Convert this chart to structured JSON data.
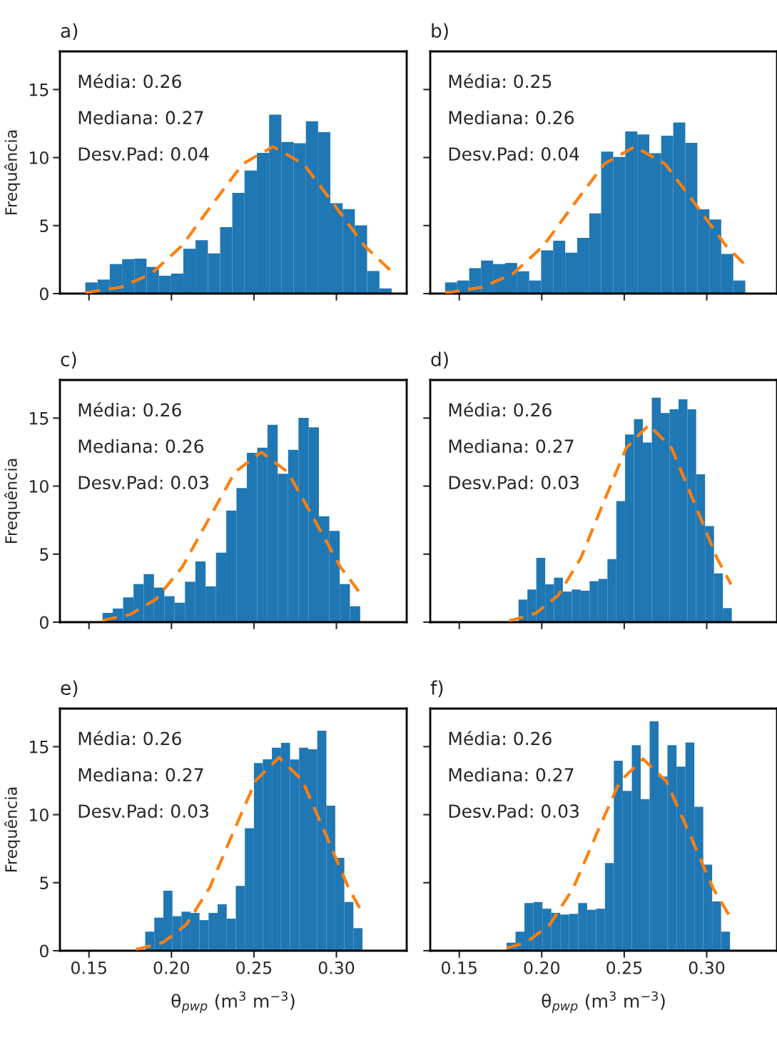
{
  "chart_data": [
    {
      "type": "histogram",
      "title": "a)",
      "ylabel": "Frequência",
      "xlim": [
        0.1324,
        0.3426
      ],
      "ylim": [
        0,
        17.8
      ],
      "xticks": [
        {
          "value": 0.15,
          "label": null
        },
        {
          "value": 0.2,
          "label": null
        },
        {
          "value": 0.25,
          "label": null
        },
        {
          "value": 0.3,
          "label": null
        }
      ],
      "yticks": [
        0,
        5,
        10,
        15
      ],
      "tick_labels": "y",
      "grid": false,
      "legend": false,
      "annotations": [
        "Média: 0.26",
        "Mediana: 0.27",
        "Desv.Pad: 0.04"
      ],
      "series": [
        {
          "type": "histogram",
          "color": "#1f77b4",
          "bins": [
            0.1478,
            0.1552,
            0.1626,
            0.1701,
            0.1775,
            0.1849,
            0.1924,
            0.1998,
            0.2072,
            0.2146,
            0.2221,
            0.2295,
            0.2369,
            0.2443,
            0.2518,
            0.2592,
            0.2666,
            0.2741,
            0.2815,
            0.2889,
            0.2963,
            0.3038,
            0.3112,
            0.3186,
            0.3261,
            0.3335
          ],
          "values": [
            0.82,
            1.03,
            2.17,
            2.53,
            2.57,
            1.96,
            1.31,
            1.47,
            3.3,
            3.92,
            2.95,
            4.88,
            7.41,
            9.04,
            10.35,
            13.15,
            11.14,
            11.05,
            12.67,
            11.87,
            6.64,
            6.21,
            5.02,
            1.66,
            0.38
          ]
        },
        {
          "type": "line",
          "color": "#ff7f0e",
          "line_style": "dashed",
          "x": [
            0.1478,
            0.1509,
            0.1694,
            0.1878,
            0.2063,
            0.2247,
            0.2432,
            0.2616,
            0.2801,
            0.2985,
            0.317,
            0.3335
          ],
          "values": [
            0.09,
            0.12,
            0.47,
            1.46,
            3.51,
            6.55,
            9.53,
            10.8,
            9.53,
            6.55,
            3.51,
            1.62
          ]
        }
      ]
    },
    {
      "type": "histogram",
      "title": "b)",
      "xlim": [
        0.1324,
        0.3426
      ],
      "ylim": [
        0,
        17.8
      ],
      "xticks": [
        {
          "value": 0.15,
          "label": null
        },
        {
          "value": 0.2,
          "label": null
        },
        {
          "value": 0.25,
          "label": null
        },
        {
          "value": 0.3,
          "label": null
        }
      ],
      "yticks": [
        0,
        5,
        10,
        15
      ],
      "tick_labels": false,
      "grid": false,
      "legend": false,
      "annotations": [
        "Média: 0.25",
        "Mediana: 0.26",
        "Desv.Pad: 0.04"
      ],
      "series": [
        {
          "type": "histogram",
          "color": "#1f77b4",
          "bins": [
            0.1414,
            0.1487,
            0.156,
            0.1632,
            0.1705,
            0.1778,
            0.1851,
            0.1924,
            0.1996,
            0.2069,
            0.2142,
            0.2215,
            0.2288,
            0.236,
            0.2433,
            0.2506,
            0.2579,
            0.2652,
            0.2724,
            0.2797,
            0.287,
            0.2943,
            0.3016,
            0.3088,
            0.3161,
            0.3234
          ],
          "values": [
            0.82,
            0.96,
            1.87,
            2.43,
            2.17,
            2.25,
            1.64,
            0.96,
            3.18,
            3.88,
            3.01,
            4.09,
            5.89,
            10.44,
            10.04,
            11.92,
            11.7,
            10.32,
            11.6,
            12.58,
            11.08,
            6.19,
            5.45,
            2.92,
            0.96
          ]
        },
        {
          "type": "line",
          "color": "#ff7f0e",
          "line_style": "dashed",
          "x": [
            0.1414,
            0.1456,
            0.1641,
            0.1825,
            0.201,
            0.2194,
            0.2379,
            0.2563,
            0.2748,
            0.2932,
            0.3117,
            0.3234
          ],
          "values": [
            0.09,
            0.12,
            0.47,
            1.46,
            3.51,
            6.55,
            9.53,
            10.8,
            9.53,
            6.55,
            3.51,
            2.1
          ]
        }
      ]
    },
    {
      "type": "histogram",
      "title": "c)",
      "ylabel": "Frequência",
      "xlim": [
        0.1324,
        0.3426
      ],
      "ylim": [
        0,
        17.8
      ],
      "xticks": [
        {
          "value": 0.15,
          "label": null
        },
        {
          "value": 0.2,
          "label": null
        },
        {
          "value": 0.25,
          "label": null
        },
        {
          "value": 0.3,
          "label": null
        }
      ],
      "yticks": [
        0,
        5,
        10,
        15
      ],
      "tick_labels": "y",
      "grid": false,
      "legend": false,
      "annotations": [
        "Média: 0.26",
        "Mediana: 0.26",
        "Desv.Pad: 0.03"
      ],
      "series": [
        {
          "type": "histogram",
          "color": "#1f77b4",
          "bins": [
            0.1582,
            0.1644,
            0.1707,
            0.177,
            0.1832,
            0.1894,
            0.1957,
            0.2019,
            0.2082,
            0.2145,
            0.2207,
            0.227,
            0.2332,
            0.2394,
            0.2457,
            0.252,
            0.2582,
            0.2644,
            0.2707,
            0.277,
            0.2832,
            0.2894,
            0.2957,
            0.302,
            0.3082,
            0.3144
          ],
          "values": [
            0.68,
            1.0,
            1.82,
            2.8,
            3.53,
            2.54,
            1.91,
            1.43,
            2.97,
            4.46,
            2.63,
            5.1,
            8.2,
            9.86,
            12.45,
            12.83,
            14.51,
            10.91,
            12.67,
            15.02,
            14.32,
            7.78,
            6.71,
            2.8,
            1.17
          ]
        },
        {
          "type": "line",
          "color": "#ff7f0e",
          "line_style": "dashed",
          "x": [
            0.1582,
            0.1747,
            0.1907,
            0.2066,
            0.2226,
            0.2385,
            0.2545,
            0.2705,
            0.2864,
            0.3024,
            0.3144
          ],
          "values": [
            0.13,
            0.55,
            1.69,
            4.06,
            7.58,
            11.03,
            12.5,
            11.03,
            7.58,
            4.06,
            2.13
          ]
        }
      ]
    },
    {
      "type": "histogram",
      "title": "d)",
      "xlim": [
        0.1324,
        0.3426
      ],
      "ylim": [
        0,
        17.8
      ],
      "xticks": [
        {
          "value": 0.15,
          "label": null
        },
        {
          "value": 0.2,
          "label": null
        },
        {
          "value": 0.25,
          "label": null
        },
        {
          "value": 0.3,
          "label": null
        }
      ],
      "yticks": [
        0,
        5,
        10,
        15
      ],
      "tick_labels": false,
      "grid": false,
      "legend": false,
      "annotations": [
        "Média: 0.26",
        "Mediana: 0.27",
        "Desv.Pad: 0.03"
      ],
      "series": [
        {
          "type": "histogram",
          "color": "#1f77b4",
          "bins": [
            0.1859,
            0.1913,
            0.1967,
            0.2021,
            0.2074,
            0.2128,
            0.2182,
            0.2236,
            0.229,
            0.2344,
            0.2398,
            0.2452,
            0.2505,
            0.2559,
            0.2613,
            0.2667,
            0.2721,
            0.2775,
            0.2829,
            0.2883,
            0.2936,
            0.299,
            0.3044,
            0.3098,
            0.3152
          ],
          "values": [
            1.66,
            2.4,
            4.72,
            2.78,
            3.27,
            2.25,
            2.4,
            2.31,
            3.01,
            3.18,
            4.63,
            8.9,
            13.79,
            14.93,
            13.2,
            16.5,
            15.37,
            15.65,
            16.38,
            15.65,
            10.87,
            7.06,
            3.58,
            1.03
          ]
        },
        {
          "type": "line",
          "color": "#ff7f0e",
          "line_style": "dashed",
          "x": [
            0.1802,
            0.1824,
            0.1962,
            0.2099,
            0.2237,
            0.2374,
            0.2512,
            0.2649,
            0.2787,
            0.2924,
            0.3062,
            0.3148
          ],
          "values": [
            0.13,
            0.16,
            0.64,
            1.96,
            4.71,
            8.79,
            12.8,
            14.5,
            12.8,
            8.79,
            4.71,
            2.77
          ]
        }
      ]
    },
    {
      "type": "histogram",
      "title": "e)",
      "ylabel": "Frequência",
      "xlabel": "θ$_{pwp}$ (m$^{3}$ m$^{−3}$)",
      "xlim": [
        0.1324,
        0.3426
      ],
      "ylim": [
        0,
        17.8
      ],
      "xticks": [
        {
          "value": 0.15,
          "label": "0.15"
        },
        {
          "value": 0.2,
          "label": "0.20"
        },
        {
          "value": 0.25,
          "label": "0.25"
        },
        {
          "value": 0.3,
          "label": "0.30"
        }
      ],
      "yticks": [
        0,
        5,
        10,
        15
      ],
      "grid": false,
      "legend": false,
      "annotations": [
        "Média: 0.26",
        "Mediana: 0.27",
        "Desv.Pad: 0.03"
      ],
      "series": [
        {
          "type": "histogram",
          "color": "#1f77b4",
          "bins": [
            0.1841,
            0.1896,
            0.1951,
            0.2006,
            0.2061,
            0.2115,
            0.217,
            0.2225,
            0.228,
            0.2335,
            0.239,
            0.2445,
            0.25,
            0.2554,
            0.2609,
            0.2664,
            0.2719,
            0.2774,
            0.2829,
            0.2884,
            0.2939,
            0.2993,
            0.3048,
            0.3103,
            0.3158
          ],
          "values": [
            1.4,
            2.43,
            4.41,
            2.54,
            2.87,
            2.78,
            2.25,
            2.78,
            3.41,
            2.36,
            4.76,
            9.0,
            13.79,
            14.07,
            14.93,
            15.28,
            14.06,
            14.93,
            14.81,
            16.17,
            10.66,
            6.82,
            3.58,
            1.66
          ]
        },
        {
          "type": "line",
          "color": "#ff7f0e",
          "line_style": "dashed",
          "x": [
            0.1786,
            0.1809,
            0.195,
            0.209,
            0.2231,
            0.2371,
            0.2512,
            0.2652,
            0.2793,
            0.2933,
            0.3074,
            0.3148
          ],
          "values": [
            0.12,
            0.16,
            0.62,
            1.92,
            4.61,
            8.61,
            12.53,
            14.2,
            12.53,
            8.61,
            4.61,
            2.97
          ]
        }
      ]
    },
    {
      "type": "histogram",
      "title": "f)",
      "xlabel": "θ$_{pwp}$ (m$^{3}$ m$^{−3}$)",
      "xlim": [
        0.1324,
        0.3426
      ],
      "ylim": [
        0,
        17.8
      ],
      "xticks": [
        {
          "value": 0.15,
          "label": "0.15"
        },
        {
          "value": 0.2,
          "label": "0.20"
        },
        {
          "value": 0.25,
          "label": "0.25"
        },
        {
          "value": 0.3,
          "label": "0.30"
        }
      ],
      "yticks": [
        0,
        5,
        10,
        15
      ],
      "tick_labels": "x",
      "grid": false,
      "legend": false,
      "annotations": [
        "Média: 0.26",
        "Mediana: 0.27",
        "Desv.Pad: 0.03"
      ],
      "series": [
        {
          "type": "histogram",
          "color": "#1f77b4",
          "bins": [
            0.1787,
            0.1841,
            0.1895,
            0.195,
            0.2004,
            0.2058,
            0.2112,
            0.2166,
            0.2221,
            0.2275,
            0.2329,
            0.2383,
            0.2437,
            0.2491,
            0.2546,
            0.26,
            0.2654,
            0.2708,
            0.2762,
            0.2817,
            0.2871,
            0.2925,
            0.2979,
            0.3033,
            0.3087,
            0.3141
          ],
          "values": [
            0.59,
            1.4,
            3.5,
            3.58,
            3.09,
            2.78,
            2.66,
            2.71,
            3.5,
            3.01,
            3.09,
            6.45,
            13.97,
            11.75,
            15.11,
            11.14,
            16.87,
            12.8,
            15.11,
            13.53,
            15.3,
            10.58,
            6.33,
            3.62,
            1.4
          ]
        },
        {
          "type": "line",
          "color": "#ff7f0e",
          "line_style": "dashed",
          "x": [
            0.1787,
            0.1907,
            0.2048,
            0.219,
            0.2331,
            0.2473,
            0.2614,
            0.2756,
            0.2897,
            0.3039,
            0.3141
          ],
          "values": [
            0.2,
            0.62,
            1.91,
            4.58,
            8.55,
            12.44,
            14.1,
            12.44,
            8.55,
            4.58,
            2.5
          ]
        }
      ]
    }
  ]
}
